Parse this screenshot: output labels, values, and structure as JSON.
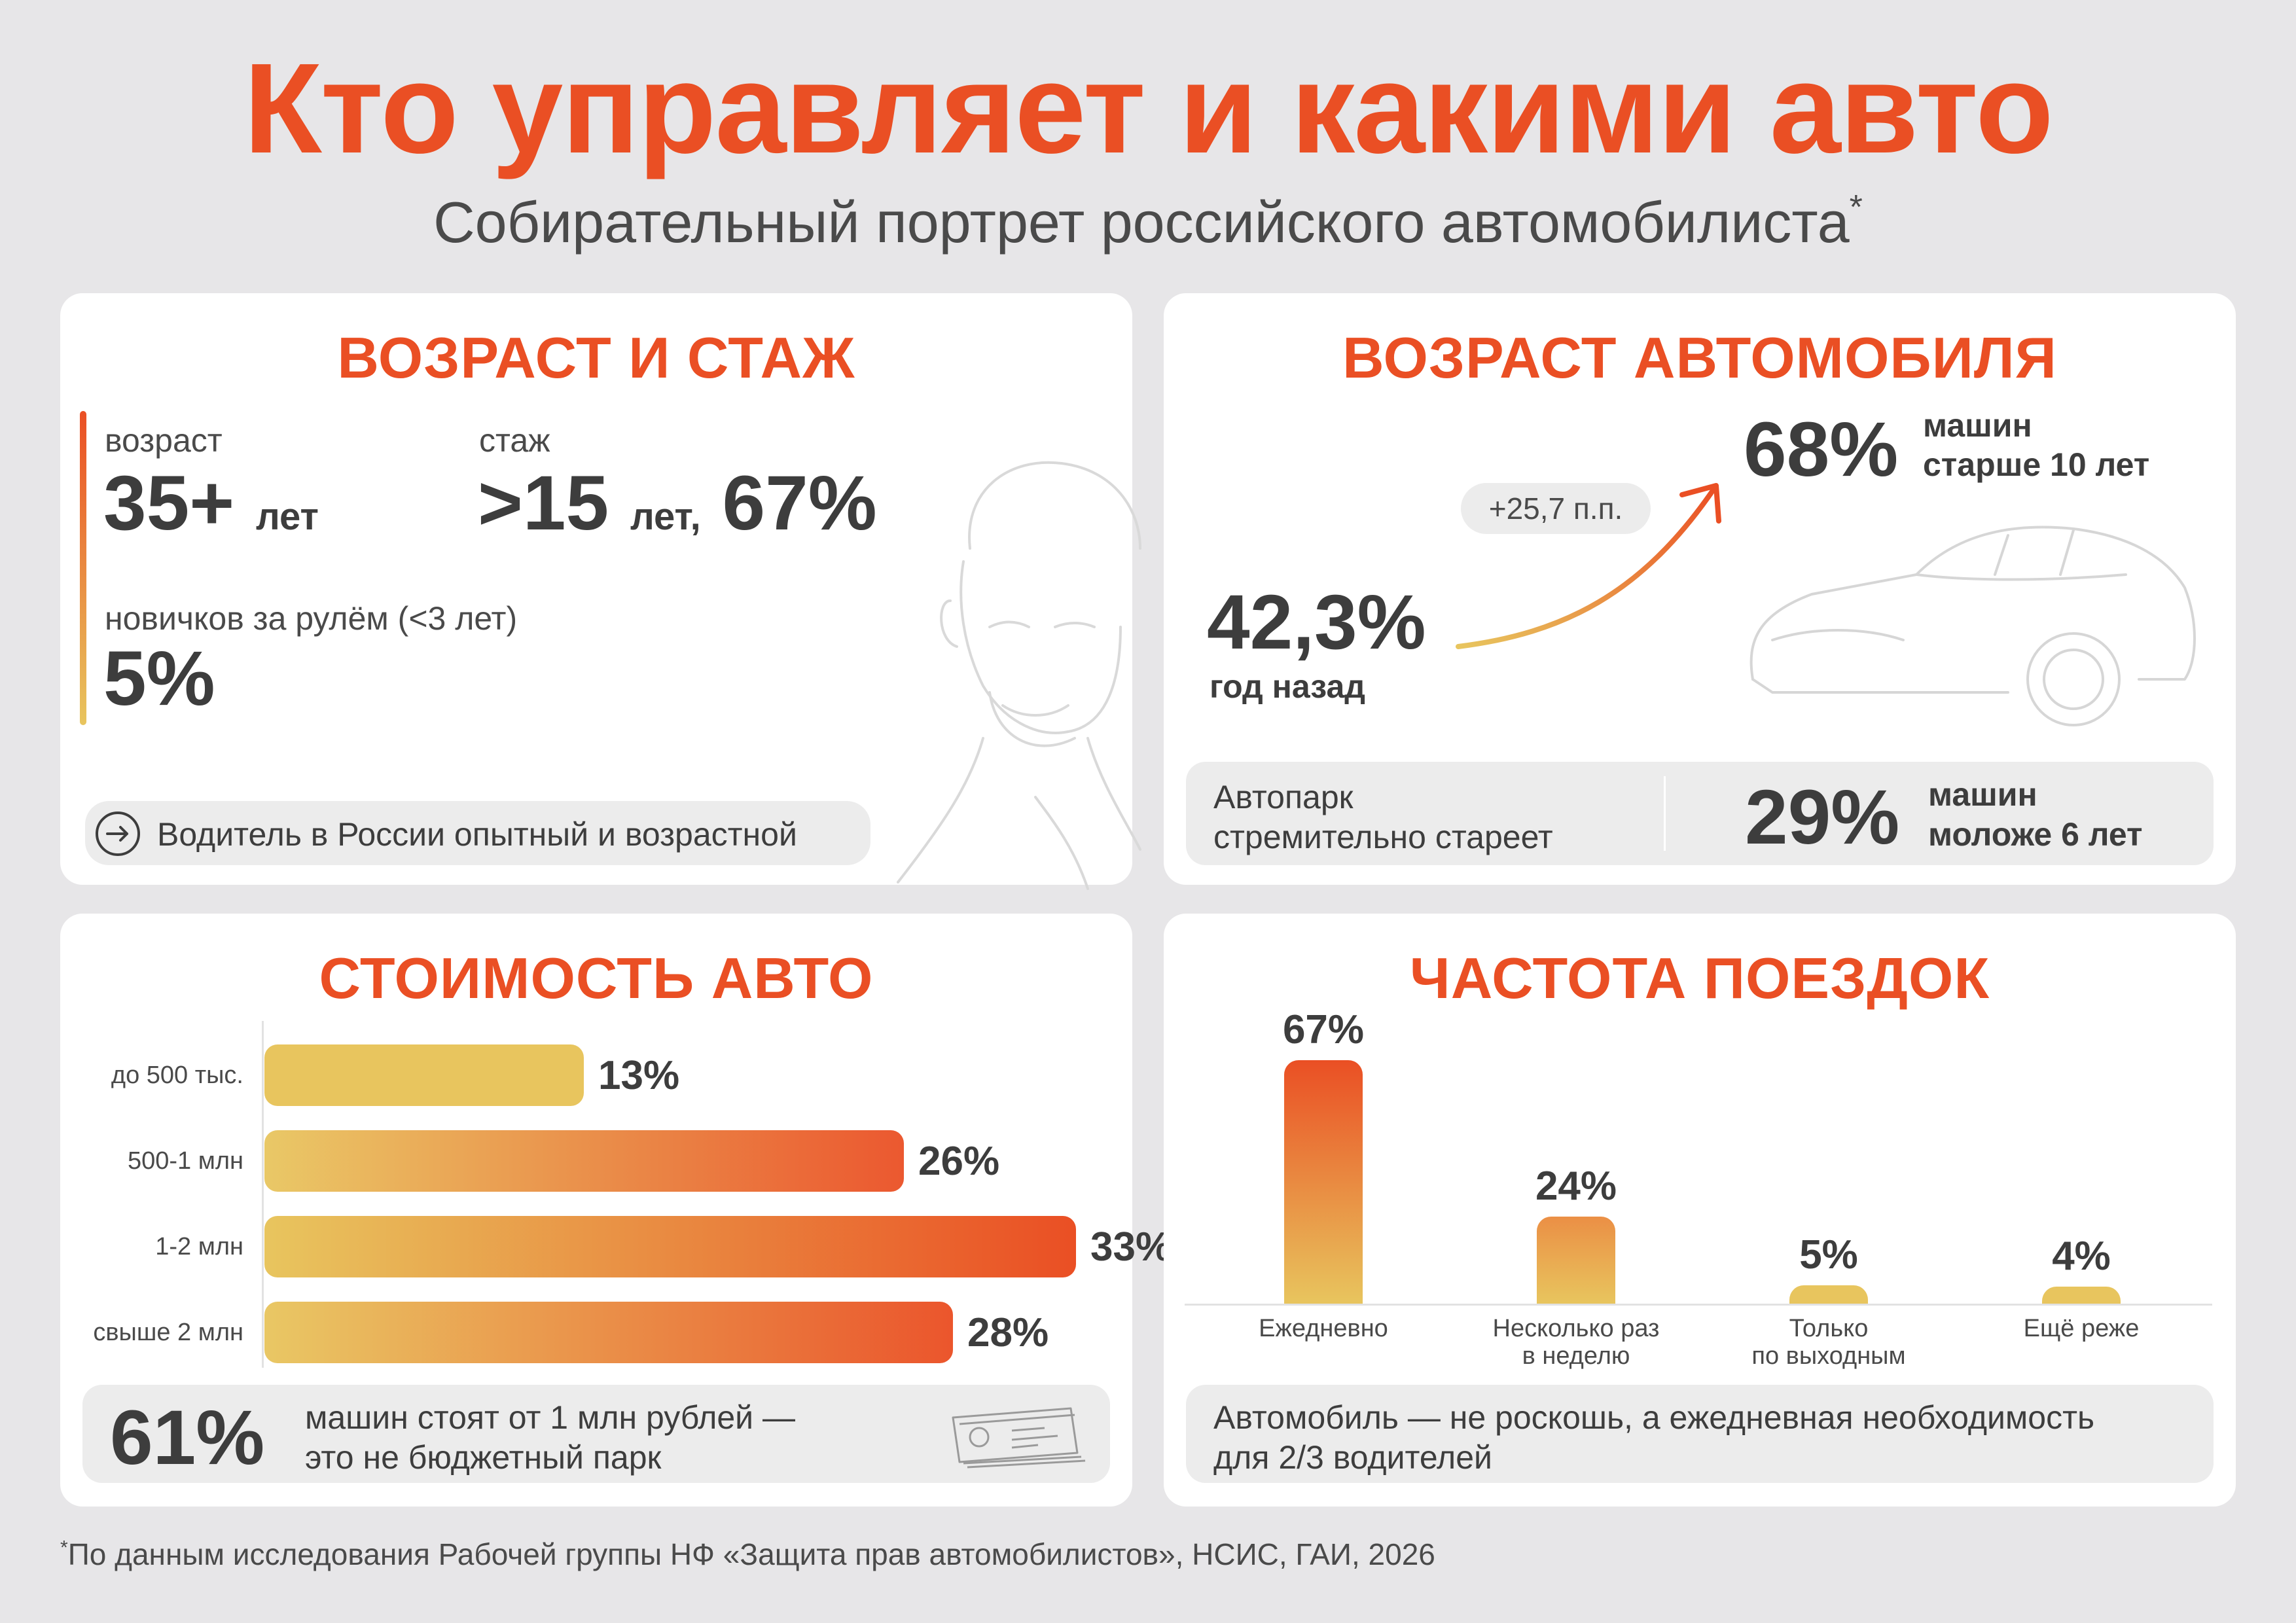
{
  "title": "Кто управляет и какими авто",
  "subtitle": "Собирательный портрет российского автомобилиста",
  "subtitle_mark": "*",
  "colors": {
    "accent": "#ea4f24",
    "accent_light": "#e8c55e",
    "card_bg": "#ffffff",
    "page_bg": "#e7e6e8"
  },
  "age_card": {
    "title": "ВОЗРАСТ И СТАЖ",
    "age_label": "возраст",
    "age_value": "35+",
    "age_unit": "лет",
    "exp_label": "стаж",
    "exp_value": ">15",
    "exp_unit": "лет,",
    "exp_share": "67%",
    "novice_label": "новичков за рулём (<3 лет)",
    "novice_value": "5%",
    "summary": "Водитель в России опытный и возрастной",
    "summary_icon": "arrow-right-circle-icon",
    "illustration": "man-portrait-icon"
  },
  "car_age_card": {
    "title": "ВОЗРАСТ АВТОМОБИЛЯ",
    "now_value": "68%",
    "now_text_1": "машин",
    "now_text_2": "старше 10 лет",
    "delta": "+25,7 п.п.",
    "prev_value": "42,3%",
    "prev_label": "год назад",
    "footer_left_1": "Автопарк",
    "footer_left_2": "стремительно стареет",
    "footer_value": "29%",
    "footer_right_1": "машин",
    "footer_right_2": "моложе 6 лет",
    "illustration": "car-outline-icon"
  },
  "chart_data": [
    {
      "type": "bar",
      "title": "СТОИМОСТЬ АВТО",
      "orientation": "horizontal",
      "categories": [
        "до 500 тыс.",
        "500-1 млн",
        "1-2 млн",
        "свыше 2 млн"
      ],
      "values": [
        13,
        26,
        33,
        28
      ],
      "value_labels": [
        "13%",
        "26%",
        "33%",
        "28%"
      ],
      "xlim": [
        0,
        33
      ]
    },
    {
      "type": "bar",
      "title": "ЧАСТОТА ПОЕЗДОК",
      "orientation": "vertical",
      "categories": [
        "Ежедневно",
        "Несколько раз в неделю",
        "Только по выходным",
        "Ещё реже"
      ],
      "category_lines": [
        [
          "Ежедневно"
        ],
        [
          "Несколько раз",
          "в неделю"
        ],
        [
          "Только",
          "по выходным"
        ],
        [
          "Ещё реже"
        ]
      ],
      "values": [
        67,
        24,
        5,
        4
      ],
      "value_labels": [
        "67%",
        "24%",
        "5%",
        "4%"
      ],
      "ylim": [
        0,
        67
      ]
    }
  ],
  "cost_card": {
    "footer_value": "61%",
    "footer_text_1": "машин стоят от 1 млн рублей —",
    "footer_text_2": "это не бюджетный парк",
    "illustration": "banknotes-icon"
  },
  "trips_card": {
    "footer_text_1": "Автомобиль — не роскошь, а ежедневная необходимость",
    "footer_text_2": "для 2/3 водителей"
  },
  "footnote_mark": "*",
  "footnote": "По данным исследования Рабочей группы НФ «Защита прав автомобилистов», НСИС, ГАИ, 2026"
}
